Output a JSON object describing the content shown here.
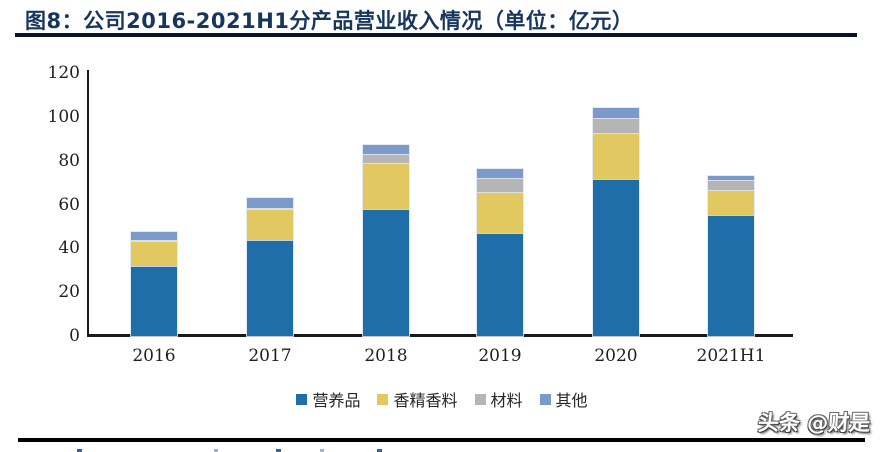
{
  "figure": {
    "title": "图8：公司2016-2021H1分产品营业收入情况（单位：亿元）",
    "watermark": "头条 @财是"
  },
  "chart_data": {
    "type": "bar",
    "stacked": true,
    "title": "公司2016-2021H1分产品营业收入情况",
    "unit": "亿元",
    "categories": [
      "2016",
      "2017",
      "2018",
      "2019",
      "2020",
      "2021H1"
    ],
    "series": [
      {
        "name": "营养品",
        "color": "#1F6DA9",
        "values": [
          32,
          44,
          58,
          47,
          71.5,
          55
        ]
      },
      {
        "name": "香精香料",
        "color": "#E2C860",
        "values": [
          11.5,
          14,
          21,
          18.5,
          21,
          11.5
        ]
      },
      {
        "name": "材料",
        "color": "#B5B5B5",
        "values": [
          0.5,
          0.5,
          4,
          6.5,
          7,
          4.5
        ]
      },
      {
        "name": "其他",
        "color": "#7C9AC9",
        "values": [
          3.5,
          4.5,
          4,
          4,
          4.5,
          2
        ]
      }
    ],
    "totals": [
      47.5,
      63,
      87,
      76,
      104,
      73
    ],
    "ylim": [
      0,
      120
    ],
    "yticks": [
      0,
      20,
      40,
      60,
      80,
      100,
      120
    ],
    "xlabel": "",
    "ylabel": "",
    "grid": false,
    "legend_position": "bottom"
  },
  "colors": {
    "title_text": "#17365D",
    "axis": "#1a1a1a",
    "rule_top": "#0B1326",
    "rule_bottom": "#000000"
  }
}
